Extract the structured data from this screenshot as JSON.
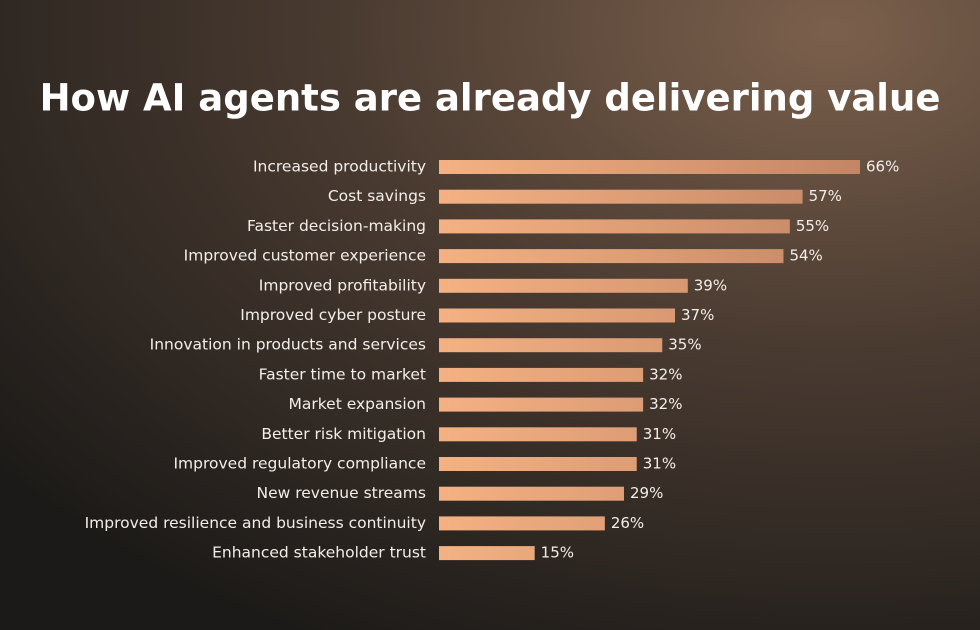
{
  "chart_data": {
    "type": "bar",
    "orientation": "horizontal",
    "title": "How AI agents are already delivering value",
    "categories": [
      "Increased productivity",
      "Cost savings",
      "Faster decision-making",
      "Improved customer experience",
      "Improved profitability",
      "Improved cyber posture",
      "Innovation in products and services",
      "Faster time to market",
      "Market expansion",
      "Better risk mitigation",
      "Improved regulatory compliance",
      "New revenue streams",
      "Improved resilience and business continuity",
      "Enhanced stakeholder trust"
    ],
    "values": [
      66,
      57,
      55,
      54,
      39,
      37,
      35,
      32,
      32,
      31,
      31,
      29,
      26,
      15
    ],
    "value_labels": [
      "66%",
      "57%",
      "55%",
      "54%",
      "39%",
      "37%",
      "35%",
      "32%",
      "32%",
      "31%",
      "31%",
      "29%",
      "26%",
      "15%"
    ],
    "color": "#f4b183"
  }
}
